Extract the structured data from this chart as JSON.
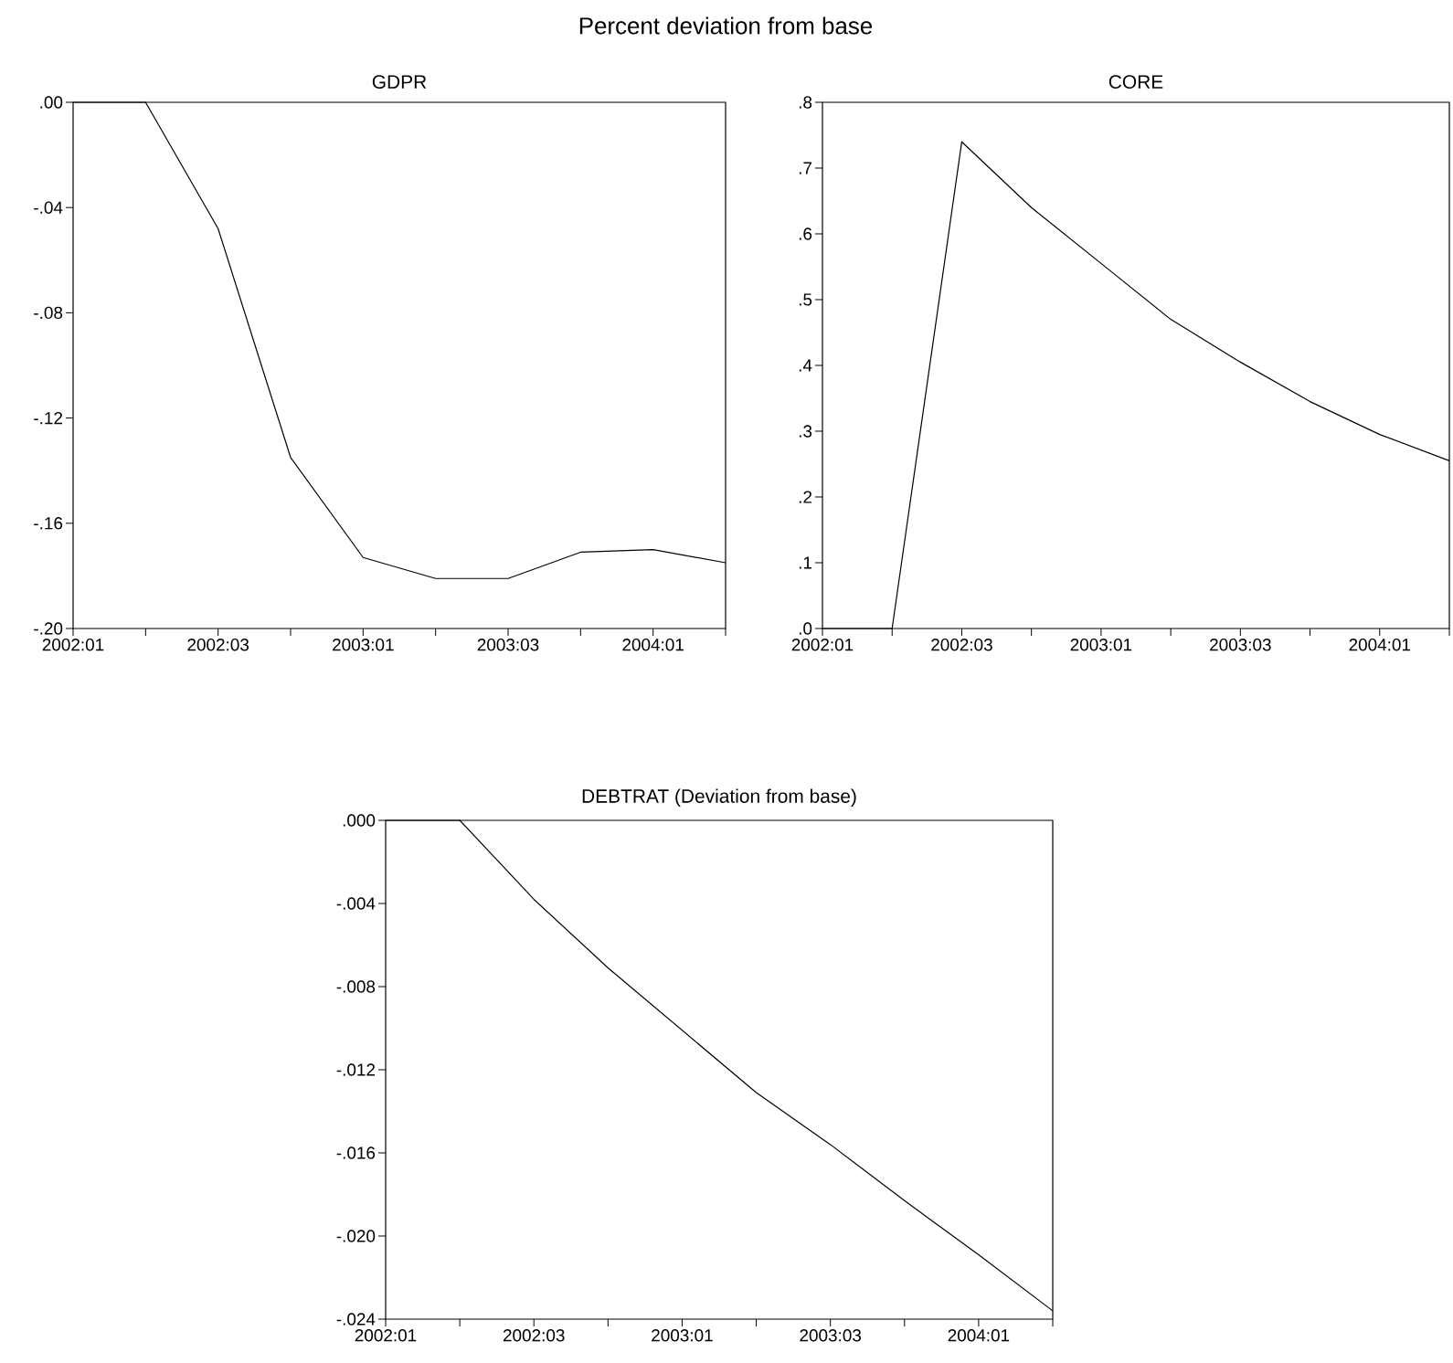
{
  "chart_data": [
    {
      "type": "line",
      "title": "GDPR",
      "annotations": [
        "Percent deviation from base"
      ],
      "categories": [
        "2002:01",
        null,
        "2002:03",
        null,
        "2003:01",
        null,
        "2003:03",
        null,
        "2004:01",
        null
      ],
      "values": [
        0,
        0,
        -0.048,
        -0.135,
        -0.173,
        -0.181,
        -0.181,
        -0.171,
        -0.17,
        -0.175
      ],
      "color": "#000000",
      "ylim": [
        -0.2,
        0
      ],
      "yticks": [
        {
          "value": -0.2,
          "label": "-.20"
        },
        {
          "value": -0.16,
          "label": "-.16"
        },
        {
          "value": -0.12,
          "label": "-.12"
        },
        {
          "value": -0.08,
          "label": "-.08"
        },
        {
          "value": -0.04,
          "label": "-.04"
        },
        {
          "value": 0,
          "label": ".00"
        }
      ]
    },
    {
      "type": "line",
      "title": "CORE",
      "categories": [
        "2002:01",
        null,
        "2002:03",
        null,
        "2003:01",
        null,
        "2003:03",
        null,
        "2004:01",
        null
      ],
      "values": [
        0,
        0,
        0.74,
        0.64,
        0.555,
        0.47,
        0.405,
        0.345,
        0.295,
        0.255
      ],
      "color": "#000000",
      "ylim": [
        0,
        0.8
      ],
      "yticks": [
        {
          "value": 0,
          "label": ".0"
        },
        {
          "value": 0.1,
          "label": ".1"
        },
        {
          "value": 0.2,
          "label": ".2"
        },
        {
          "value": 0.3,
          "label": ".3"
        },
        {
          "value": 0.4,
          "label": ".4"
        },
        {
          "value": 0.5,
          "label": ".5"
        },
        {
          "value": 0.6,
          "label": ".6"
        },
        {
          "value": 0.7,
          "label": ".7"
        },
        {
          "value": 0.8,
          "label": ".8"
        }
      ]
    },
    {
      "type": "line",
      "title": "DEBTRAT (Deviation from base)",
      "categories": [
        "2002:01",
        null,
        "2002:03",
        null,
        "2003:01",
        null,
        "2003:03",
        null,
        "2004:01",
        null
      ],
      "values": [
        0,
        0,
        -0.0038,
        -0.0071,
        -0.0101,
        -0.0131,
        -0.0156,
        -0.0183,
        -0.0209,
        -0.0236
      ],
      "color": "#000000",
      "ylim": [
        -0.024,
        0
      ],
      "yticks": [
        {
          "value": -0.024,
          "label": "-.024"
        },
        {
          "value": -0.02,
          "label": "-.020"
        },
        {
          "value": -0.016,
          "label": "-.016"
        },
        {
          "value": -0.012,
          "label": "-.012"
        },
        {
          "value": -0.008,
          "label": "-.008"
        },
        {
          "value": -0.004,
          "label": "-.004"
        },
        {
          "value": 0,
          "label": ".000"
        }
      ]
    }
  ]
}
